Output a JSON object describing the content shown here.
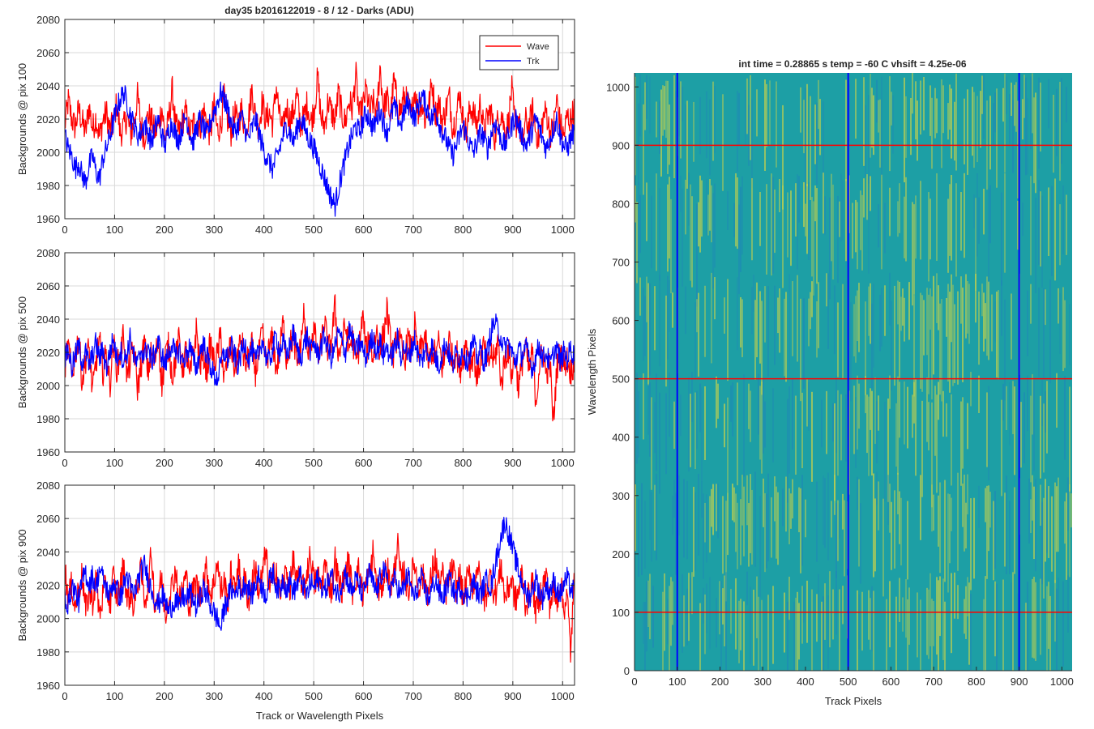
{
  "figure": {
    "title_left": "day35 b2016122019 - 8 / 12 - Darks (ADU)",
    "title_right": "int time = 0.28865 s    temp = -60 C    vhsift = 4.25e-06"
  },
  "colors": {
    "wave": "#ff0000",
    "trk": "#0000ff",
    "grid": "#d9d9d9",
    "axis": "#262626",
    "heatmap_base": "#1d9fa5",
    "heatmap_high": "#c8d24a",
    "heatmap_low": "#1f86b8"
  },
  "chart_data": [
    {
      "type": "line",
      "ylabel": "Backgrounds @ pix 100",
      "xlim": [
        0,
        1024
      ],
      "ylim": [
        1960,
        2080
      ],
      "xticks": [
        0,
        100,
        200,
        300,
        400,
        500,
        600,
        700,
        800,
        900,
        1000
      ],
      "yticks": [
        1960,
        1980,
        2000,
        2020,
        2040,
        2060,
        2080
      ],
      "grid": true,
      "legend": {
        "position": "top-right",
        "entries": [
          "Wave",
          "Trk"
        ]
      },
      "series": [
        {
          "name": "Wave",
          "color": "#ff0000",
          "values": [
            2016,
            2031,
            2020,
            2015,
            2026,
            2018,
            2012,
            2028,
            2014,
            2021,
            2009,
            2019,
            2024,
            2013,
            2017,
            2030,
            2011,
            2015,
            2022,
            2010,
            2018,
            2034,
            2016,
            2009,
            2023,
            2019,
            2012,
            2016,
            2027,
            2008,
            2020,
            2038,
            2015,
            2012,
            2019,
            2024,
            2011,
            2017,
            2021,
            2014,
            2026,
            2018,
            2010,
            2029,
            2013,
            2016,
            2033,
            2019,
            2012,
            2024,
            2017,
            2026,
            2014,
            2020,
            2038,
            2022,
            2015,
            2031,
            2019,
            2024,
            2017,
            2040,
            2021,
            2013,
            2028,
            2019,
            2024,
            2035,
            2016,
            2021,
            2030,
            2018,
            2026,
            2045,
            2020,
            2016,
            2031,
            2024,
            2019,
            2036,
            2022,
            2018,
            2031,
            2026,
            2047,
            2021,
            2027,
            2038,
            2024,
            2030,
            2022,
            2052,
            2026,
            2033,
            2021,
            2044,
            2028,
            2025,
            2034,
            2029,
            2021,
            2038,
            2024,
            2031,
            2019,
            2027,
            2042,
            2023,
            2030,
            2018,
            2026,
            2034,
            2014,
            2022,
            2036,
            2019,
            2011,
            2028,
            2023,
            2016,
            2031,
            2012,
            2021,
            2026,
            2008,
            2019,
            2024,
            2013,
            2017,
            2038,
            2015,
            2021,
            2004,
            2019,
            2015,
            2026,
            2012,
            2008,
            2020,
            2025,
            2011,
            2014,
            2032,
            2017,
            2009,
            2022,
            2019,
            2026
          ],
          "trend_note": ""
        },
        {
          "name": "Trk",
          "color": "#0000ff",
          "values": [
            2010,
            2002,
            1998,
            1990,
            1994,
            1986,
            1982,
            1992,
            1998,
            1988,
            1984,
            1996,
            2002,
            2010,
            2018,
            2026,
            2032,
            2036,
            2030,
            2022,
            2016,
            2010,
            2012,
            2018,
            2012,
            2006,
            2014,
            2020,
            2010,
            2004,
            2014,
            2018,
            2010,
            2008,
            2016,
            2022,
            2012,
            2006,
            2014,
            2020,
            2014,
            2010,
            2018,
            2024,
            2030,
            2036,
            2032,
            2026,
            2018,
            2012,
            2016,
            2022,
            2014,
            2008,
            2014,
            2020,
            2012,
            2004,
            1998,
            1994,
            1990,
            1996,
            2002,
            2010,
            2016,
            2012,
            2006,
            2014,
            2020,
            2016,
            2010,
            2006,
            2002,
            1996,
            1990,
            1984,
            1978,
            1972,
            1968,
            1978,
            1988,
            1996,
            2004,
            2010,
            2016,
            2012,
            2018,
            2024,
            2020,
            2014,
            2020,
            2026,
            2018,
            2012,
            2020,
            2028,
            2022,
            2016,
            2024,
            2030,
            2026,
            2020,
            2028,
            2034,
            2030,
            2024,
            2020,
            2026,
            2018,
            2012,
            2008,
            2002,
            1998,
            2004,
            2010,
            2016,
            2010,
            2004,
            2000,
            2006,
            2012,
            2008,
            2002,
            2010,
            2018,
            2014,
            2008,
            2004,
            2010,
            2016,
            2022,
            2016,
            2010,
            2004,
            2008,
            2014,
            2020,
            2014,
            2008,
            2002,
            2008,
            2014,
            2020,
            2010,
            2004,
            2002,
            2008,
            2012
          ],
          "trend_note": ""
        }
      ]
    },
    {
      "type": "line",
      "ylabel": "Backgrounds @ pix 500",
      "xlim": [
        0,
        1024
      ],
      "ylim": [
        1960,
        2080
      ],
      "xticks": [
        0,
        100,
        200,
        300,
        400,
        500,
        600,
        700,
        800,
        900,
        1000
      ],
      "yticks": [
        1960,
        1980,
        2000,
        2020,
        2040,
        2060,
        2080
      ],
      "grid": true,
      "series": [
        {
          "name": "Wave",
          "color": "#ff0000",
          "values": [
            2012,
            2024,
            2006,
            2018,
            2030,
            2002,
            2016,
            2022,
            1996,
            2014,
            2028,
            2008,
            2020,
            2000,
            2026,
            2010,
            2018,
            2032,
            2004,
            2016,
            2022,
            1998,
            2012,
            2026,
            2008,
            2020,
            2014,
            2030,
            2000,
            2018,
            2024,
            2006,
            2016,
            2028,
            2010,
            2022,
            2004,
            2018,
            2034,
            2012,
            2020,
            2008,
            2026,
            2014,
            2018,
            2030,
            2002,
            2016,
            2024,
            2010,
            2020,
            2028,
            2012,
            2016,
            2024,
            2008,
            2018,
            2032,
            2014,
            2022,
            2028,
            2010,
            2020,
            2038,
            2016,
            2024,
            2030,
            2012,
            2022,
            2044,
            2018,
            2026,
            2034,
            2016,
            2024,
            2040,
            2020,
            2028,
            2048,
            2018,
            2026,
            2036,
            2022,
            2030,
            2014,
            2024,
            2042,
            2020,
            2028,
            2016,
            2034,
            2022,
            2030,
            2046,
            2026,
            2018,
            2032,
            2024,
            2014,
            2028,
            2020,
            2036,
            2016,
            2024,
            2030,
            2012,
            2022,
            2018,
            2026,
            2010,
            2020,
            2028,
            2014,
            2022,
            2008,
            2018,
            2026,
            2012,
            2020,
            2004,
            2016,
            2024,
            2010,
            2020,
            2014,
            2028,
            2000,
            2016,
            2022,
            2006,
            2018,
            1998,
            2014,
            2024,
            2008,
            2020,
            1990,
            2012,
            2022,
            2006,
            2016,
            1976,
            2010,
            2020,
            2012,
            2016,
            2008,
            2014
          ]
        },
        {
          "name": "Trk",
          "color": "#0000ff",
          "values": [
            2016,
            2022,
            2010,
            2018,
            2024,
            2014,
            2020,
            2012,
            2018,
            2026,
            2016,
            2022,
            2010,
            2020,
            2028,
            2016,
            2022,
            2014,
            2020,
            2030,
            2016,
            2012,
            2022,
            2018,
            2024,
            2014,
            2020,
            2026,
            2018,
            2012,
            2020,
            2026,
            2016,
            2022,
            2014,
            2018,
            2024,
            2016,
            2010,
            2020,
            2026,
            2018,
            2012,
            2006,
            2004,
            2012,
            2020,
            2016,
            2024,
            2018,
            2012,
            2020,
            2026,
            2016,
            2022,
            2014,
            2020,
            2028,
            2018,
            2014,
            2022,
            2030,
            2020,
            2026,
            2018,
            2024,
            2032,
            2022,
            2016,
            2024,
            2030,
            2020,
            2026,
            2018,
            2024,
            2030,
            2022,
            2016,
            2024,
            2032,
            2026,
            2020,
            2034,
            2028,
            2020,
            2026,
            2022,
            2016,
            2024,
            2030,
            2020,
            2026,
            2018,
            2024,
            2016,
            2022,
            2028,
            2018,
            2024,
            2016,
            2022,
            2028,
            2018,
            2014,
            2022,
            2018,
            2024,
            2016,
            2012,
            2020,
            2026,
            2018,
            2012,
            2020,
            2016,
            2022,
            2014,
            2020,
            2026,
            2016,
            2022,
            2014,
            2020,
            2032,
            2038,
            2034,
            2028,
            2022,
            2026,
            2020,
            2014,
            2022,
            2018,
            2024,
            2016,
            2010,
            2018,
            2024,
            2016,
            2020,
            2012,
            2018,
            2024,
            2014,
            2020,
            2016,
            2022,
            2018
          ]
        }
      ]
    },
    {
      "type": "line",
      "ylabel": "Backgrounds @ pix 900",
      "xlabel": "Track or Wavelength Pixels",
      "xlim": [
        0,
        1024
      ],
      "ylim": [
        1960,
        2080
      ],
      "xticks": [
        0,
        100,
        200,
        300,
        400,
        500,
        600,
        700,
        800,
        900,
        1000
      ],
      "yticks": [
        1960,
        1980,
        2000,
        2020,
        2040,
        2060,
        2080
      ],
      "grid": true,
      "series": [
        {
          "name": "Wave",
          "color": "#ff0000",
          "values": [
            2030,
            2012,
            2020,
            2006,
            2018,
            2026,
            2004,
            2016,
            2010,
            2024,
            2002,
            2014,
            2020,
            2008,
            2026,
            2012,
            2018,
            2034,
            2010,
            2016,
            2006,
            2022,
            2028,
            2012,
            2018,
            2040,
            2008,
            2016,
            2024,
            2002,
            2014,
            2020,
            2030,
            2010,
            2018,
            2026,
            2006,
            2016,
            2022,
            2012,
            2024,
            2030,
            2014,
            2020,
            2036,
            2016,
            2022,
            2010,
            2028,
            2016,
            2034,
            2018,
            2024,
            2010,
            2022,
            2030,
            2016,
            2026,
            2040,
            2018,
            2024,
            2032,
            2014,
            2022,
            2028,
            2018,
            2036,
            2020,
            2026,
            2016,
            2030,
            2038,
            2020,
            2026,
            2018,
            2032,
            2024,
            2016,
            2036,
            2022,
            2018,
            2028,
            2034,
            2016,
            2024,
            2030,
            2014,
            2022,
            2026,
            2040,
            2020,
            2016,
            2024,
            2032,
            2018,
            2026,
            2046,
            2022,
            2028,
            2016,
            2024,
            2034,
            2018,
            2026,
            2022,
            2014,
            2028,
            2036,
            2020,
            2026,
            2016,
            2024,
            2030,
            2018,
            2026,
            2012,
            2022,
            2028,
            2016,
            2034,
            2020,
            2010,
            2018,
            2026,
            2014,
            2020,
            2032,
            2012,
            2018,
            2024,
            2010,
            2016,
            2028,
            2008,
            2014,
            2022,
            2004,
            2012,
            2020,
            2026,
            2008,
            2016,
            2010,
            2022,
            2006,
            2014,
            1980,
            2020
          ]
        },
        {
          "name": "Trk",
          "color": "#0000ff",
          "values": [
            2014,
            2008,
            2020,
            2016,
            2010,
            2022,
            2028,
            2020,
            2026,
            2018,
            2030,
            2024,
            2018,
            2014,
            2022,
            2018,
            2012,
            2020,
            2026,
            2018,
            2014,
            2022,
            2028,
            2032,
            2024,
            2018,
            2012,
            2008,
            2014,
            2010,
            2004,
            2008,
            2012,
            2006,
            2014,
            2010,
            2016,
            2012,
            2006,
            2012,
            2018,
            2014,
            2008,
            2004,
            2000,
            1994,
            2006,
            2012,
            2018,
            2014,
            2020,
            2016,
            2022,
            2018,
            2014,
            2020,
            2026,
            2018,
            2014,
            2022,
            2028,
            2020,
            2016,
            2024,
            2018,
            2022,
            2016,
            2020,
            2026,
            2018,
            2014,
            2022,
            2018,
            2024,
            2020,
            2016,
            2022,
            2026,
            2018,
            2014,
            2022,
            2028,
            2020,
            2016,
            2024,
            2020,
            2014,
            2022,
            2028,
            2020,
            2016,
            2024,
            2030,
            2022,
            2018,
            2024,
            2020,
            2014,
            2020,
            2026,
            2018,
            2012,
            2020,
            2024,
            2016,
            2012,
            2018,
            2024,
            2016,
            2012,
            2018,
            2024,
            2018,
            2014,
            2020,
            2016,
            2012,
            2018,
            2022,
            2016,
            2014,
            2020,
            2024,
            2018,
            2030,
            2040,
            2050,
            2058,
            2052,
            2044,
            2036,
            2028,
            2022,
            2016,
            2012,
            2018,
            2024,
            2016,
            2012,
            2020,
            2016,
            2022,
            2018,
            2014,
            2020,
            2024,
            2018,
            2016
          ]
        }
      ]
    },
    {
      "type": "heatmap",
      "xlabel": "Track Pixels",
      "ylabel": "Wavelength Pixels",
      "xlim": [
        0,
        1024
      ],
      "ylim": [
        0,
        1024
      ],
      "xticks": [
        0,
        100,
        200,
        300,
        400,
        500,
        600,
        700,
        800,
        900,
        1000
      ],
      "yticks": [
        0,
        100,
        200,
        300,
        400,
        500,
        600,
        700,
        800,
        900,
        1000
      ],
      "vertical_markers": [
        100,
        500,
        900
      ],
      "horizontal_markers": [
        100,
        500,
        900
      ],
      "vertical_marker_color": "#0000ff",
      "horizontal_marker_color": "#ff0000"
    }
  ]
}
